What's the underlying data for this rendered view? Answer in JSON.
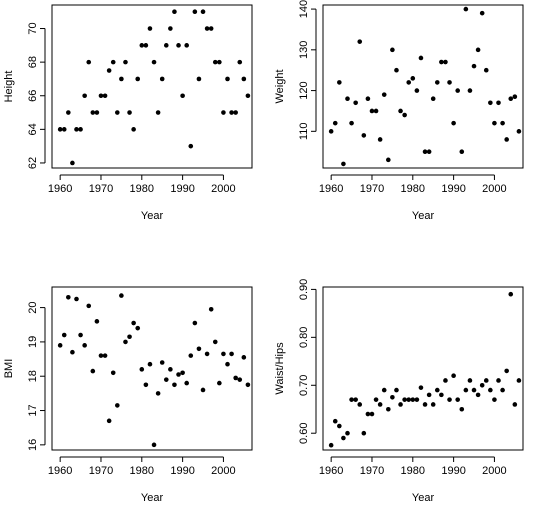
{
  "chart_data": [
    {
      "type": "scatter",
      "xlabel": "Year",
      "ylabel": "Height",
      "xlim": [
        1958,
        2007
      ],
      "ylim": [
        61.7,
        71.4
      ],
      "xticks": [
        1960,
        1970,
        1980,
        1990,
        2000
      ],
      "xtick_labels": [
        "1960",
        "1970",
        "1980",
        "1990",
        "2000"
      ],
      "yticks": [
        62,
        64,
        66,
        68,
        70
      ],
      "ytick_labels": [
        "62",
        "64",
        "66",
        "68",
        "70"
      ],
      "x": [
        1960,
        1961,
        1962,
        1963,
        1964,
        1965,
        1966,
        1967,
        1968,
        1969,
        1970,
        1971,
        1972,
        1973,
        1974,
        1975,
        1976,
        1977,
        1978,
        1979,
        1980,
        1981,
        1982,
        1983,
        1984,
        1985,
        1986,
        1987,
        1988,
        1989,
        1990,
        1991,
        1992,
        1993,
        1994,
        1995,
        1996,
        1997,
        1998,
        1999,
        2000,
        2001,
        2002,
        2003,
        2004,
        2005,
        2006
      ],
      "y": [
        64,
        64,
        65,
        62,
        64,
        64,
        66,
        68,
        65,
        65,
        66,
        66,
        67.5,
        68,
        65,
        67,
        68,
        65,
        64,
        67,
        69,
        69,
        70,
        68,
        65,
        67,
        69,
        70,
        71,
        69,
        66,
        69,
        63,
        71,
        67,
        71,
        70,
        70,
        68,
        68,
        65,
        67,
        65,
        65,
        68,
        67,
        66
      ]
    },
    {
      "type": "scatter",
      "xlabel": "Year",
      "ylabel": "Weight",
      "xlim": [
        1958,
        2007
      ],
      "ylim": [
        101,
        141
      ],
      "xticks": [
        1960,
        1970,
        1980,
        1990,
        2000
      ],
      "xtick_labels": [
        "1960",
        "1970",
        "1980",
        "1990",
        "2000"
      ],
      "yticks": [
        110,
        120,
        130,
        140
      ],
      "ytick_labels": [
        "110",
        "120",
        "130",
        "140"
      ],
      "x": [
        1960,
        1961,
        1962,
        1963,
        1964,
        1965,
        1966,
        1967,
        1968,
        1969,
        1970,
        1971,
        1972,
        1973,
        1974,
        1975,
        1976,
        1977,
        1978,
        1979,
        1980,
        1981,
        1982,
        1983,
        1984,
        1985,
        1986,
        1987,
        1988,
        1989,
        1990,
        1991,
        1992,
        1993,
        1994,
        1995,
        1996,
        1997,
        1998,
        1999,
        2000,
        2001,
        2002,
        2003,
        2004,
        2005,
        2006
      ],
      "y": [
        110,
        112,
        122,
        102,
        118,
        112,
        117,
        132,
        109,
        118,
        115,
        115,
        108,
        119,
        103,
        130,
        125,
        115,
        114,
        122,
        123,
        120,
        128,
        105,
        105,
        118,
        122,
        127,
        127,
        122,
        112,
        120,
        105,
        140,
        120,
        126,
        130,
        139,
        125,
        117,
        112,
        117,
        112,
        108,
        118,
        118.5,
        110
      ]
    },
    {
      "type": "scatter",
      "xlabel": "Year",
      "ylabel": "BMI",
      "xlim": [
        1958,
        2007
      ],
      "ylim": [
        15.85,
        20.6
      ],
      "xticks": [
        1960,
        1970,
        1980,
        1990,
        2000
      ],
      "xtick_labels": [
        "1960",
        "1970",
        "1980",
        "1990",
        "2000"
      ],
      "yticks": [
        16,
        17,
        18,
        19,
        20
      ],
      "ytick_labels": [
        "16",
        "17",
        "18",
        "19",
        "20"
      ],
      "x": [
        1960,
        1961,
        1962,
        1963,
        1964,
        1965,
        1966,
        1967,
        1968,
        1969,
        1970,
        1971,
        1972,
        1973,
        1974,
        1975,
        1976,
        1977,
        1978,
        1979,
        1980,
        1981,
        1982,
        1983,
        1984,
        1985,
        1986,
        1987,
        1988,
        1989,
        1990,
        1991,
        1992,
        1993,
        1994,
        1995,
        1996,
        1997,
        1998,
        1999,
        2000,
        2001,
        2002,
        2003,
        2004,
        2005,
        2006
      ],
      "y": [
        18.9,
        19.2,
        20.3,
        18.7,
        20.25,
        19.2,
        18.9,
        20.05,
        18.15,
        19.6,
        18.6,
        18.6,
        16.7,
        18.1,
        17.15,
        20.35,
        19.0,
        19.15,
        19.55,
        19.4,
        18.2,
        17.75,
        18.35,
        16.0,
        17.5,
        18.4,
        17.9,
        18.2,
        17.75,
        18.05,
        18.1,
        17.8,
        18.6,
        19.55,
        18.8,
        17.6,
        18.65,
        19.95,
        19.0,
        17.8,
        18.65,
        18.35,
        18.65,
        17.95,
        17.9,
        18.55,
        17.75
      ]
    },
    {
      "type": "scatter",
      "xlabel": "Year",
      "ylabel": "Waist/Hips",
      "xlim": [
        1958,
        2007
      ],
      "ylim": [
        0.565,
        0.905
      ],
      "xticks": [
        1960,
        1970,
        1980,
        1990,
        2000
      ],
      "xtick_labels": [
        "1960",
        "1970",
        "1980",
        "1990",
        "2000"
      ],
      "yticks": [
        0.6,
        0.7,
        0.8,
        0.9
      ],
      "ytick_labels": [
        "0.60",
        "0.70",
        "0.80",
        "0.90"
      ],
      "x": [
        1960,
        1961,
        1962,
        1963,
        1964,
        1965,
        1966,
        1967,
        1968,
        1969,
        1970,
        1971,
        1972,
        1973,
        1974,
        1975,
        1976,
        1977,
        1978,
        1979,
        1980,
        1981,
        1982,
        1983,
        1984,
        1985,
        1986,
        1987,
        1988,
        1989,
        1990,
        1991,
        1992,
        1993,
        1994,
        1995,
        1996,
        1997,
        1998,
        1999,
        2000,
        2001,
        2002,
        2003,
        2004,
        2005,
        2006
      ],
      "y": [
        0.575,
        0.625,
        0.615,
        0.59,
        0.6,
        0.67,
        0.67,
        0.66,
        0.6,
        0.64,
        0.64,
        0.67,
        0.66,
        0.69,
        0.65,
        0.675,
        0.69,
        0.66,
        0.67,
        0.67,
        0.67,
        0.67,
        0.695,
        0.66,
        0.68,
        0.66,
        0.69,
        0.68,
        0.71,
        0.67,
        0.72,
        0.67,
        0.65,
        0.69,
        0.71,
        0.69,
        0.68,
        0.7,
        0.71,
        0.69,
        0.67,
        0.71,
        0.69,
        0.73,
        0.89,
        0.66,
        0.71
      ]
    }
  ]
}
